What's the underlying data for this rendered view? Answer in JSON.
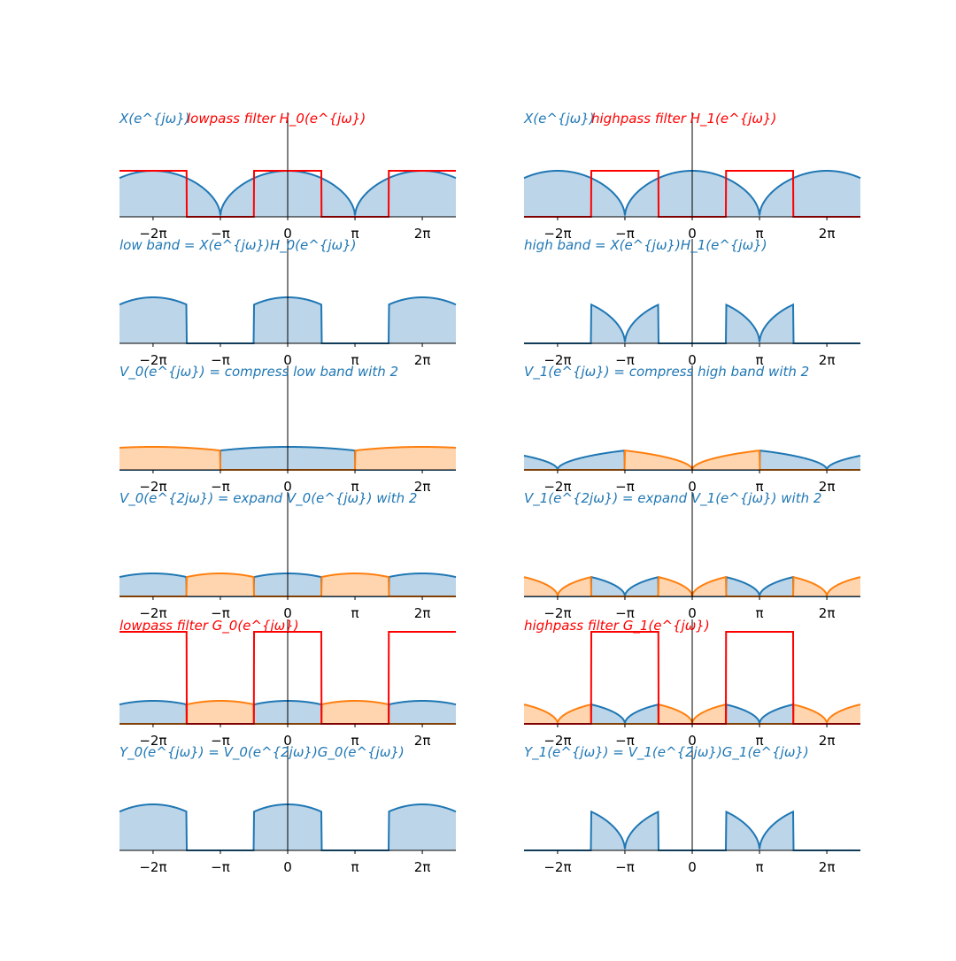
{
  "colors": {
    "blue": "#1f77b4",
    "blue_fill": "#bcd5e8",
    "orange": "#ff7f0e",
    "orange_fill": "#ffd5b0",
    "red": "#ff0000",
    "axis": "#000000"
  },
  "chart_data": [
    {
      "type": "area",
      "title": "X(e^{jω})",
      "title2": "lowpass filter H_0(e^{jω})",
      "xticks": [
        "−2π",
        "−π",
        "0",
        "π",
        "2π"
      ],
      "xlim": [
        -7.85,
        7.85
      ],
      "series": [
        {
          "values": "|sin(ω/2)|^0.5 spectrum, peak 1.0 at 0, ±2π; zeros at ±π",
          "color": "blue"
        },
        {
          "values": "ideal lowpass, height 1 for |ω mod 2π| < π/2",
          "color": "red"
        }
      ]
    },
    {
      "type": "area",
      "title": "X(e^{jω})",
      "title2": "highpass filter H_1(e^{jω})",
      "xticks": [
        "−2π",
        "−π",
        "0",
        "π",
        "2π"
      ],
      "xlim": [
        -7.85,
        7.85
      ],
      "series": [
        {
          "values": "spectrum, peak 1.0 at 0, ±2π; zeros at ±π",
          "color": "blue"
        },
        {
          "values": "ideal highpass, height 1 for π/2 < |ω mod 2π| < π",
          "color": "red"
        }
      ]
    },
    {
      "type": "area",
      "title": "low band = X(e^{jω})H_0(e^{jω})",
      "xticks": [
        "−2π",
        "−π",
        "0",
        "π",
        "2π"
      ],
      "xlim": [
        -7.85,
        7.85
      ]
    },
    {
      "type": "area",
      "title": "high band = X(e^{jω})H_1(e^{jω})",
      "xticks": [
        "−2π",
        "−π",
        "0",
        "π",
        "2π"
      ],
      "xlim": [
        -7.85,
        7.85
      ]
    },
    {
      "type": "area",
      "title": "V_0(e^{jω}) = compress low band with 2",
      "xticks": [
        "−2π",
        "−π",
        "0",
        "π",
        "2π"
      ],
      "xlim": [
        -7.85,
        7.85
      ]
    },
    {
      "type": "area",
      "title": "V_1(e^{jω}) = compress high band with 2",
      "xticks": [
        "−2π",
        "−π",
        "0",
        "π",
        "2π"
      ],
      "xlim": [
        -7.85,
        7.85
      ]
    },
    {
      "type": "area",
      "title": "V_0(e^{2jω}) = expand V_0(e^{jω}) with 2",
      "xticks": [
        "−2π",
        "−π",
        "0",
        "π",
        "2π"
      ],
      "xlim": [
        -7.85,
        7.85
      ]
    },
    {
      "type": "area",
      "title": "V_1(e^{2jω}) = expand V_1(e^{jω}) with 2",
      "xticks": [
        "−2π",
        "−π",
        "0",
        "π",
        "2π"
      ],
      "xlim": [
        -7.85,
        7.85
      ]
    },
    {
      "type": "area",
      "title": "lowpass filter G_0(e^{jω})",
      "xticks": [
        "−2π",
        "−π",
        "0",
        "π",
        "2π"
      ],
      "xlim": [
        -7.85,
        7.85
      ]
    },
    {
      "type": "area",
      "title": "highpass filter G_1(e^{jω})",
      "xticks": [
        "−2π",
        "−π",
        "0",
        "π",
        "2π"
      ],
      "xlim": [
        -7.85,
        7.85
      ]
    },
    {
      "type": "area",
      "title": "Y_0(e^{jω}) = V_0(e^{2jω})G_0(e^{jω})",
      "xticks": [
        "−2π",
        "−π",
        "0",
        "π",
        "2π"
      ],
      "xlim": [
        -7.85,
        7.85
      ]
    },
    {
      "type": "area",
      "title": "Y_1(e^{jω}) = V_1(e^{2jω})G_1(e^{jω})",
      "xticks": [
        "−2π",
        "−π",
        "0",
        "π",
        "2π"
      ],
      "xlim": [
        -7.85,
        7.85
      ]
    }
  ]
}
